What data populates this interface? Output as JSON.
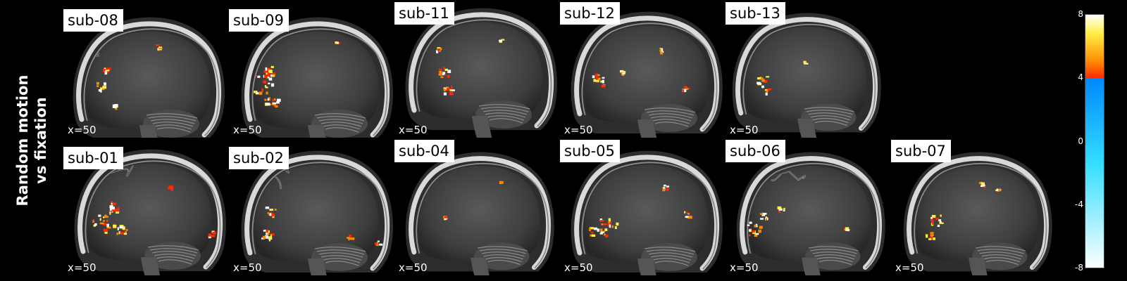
{
  "figure": {
    "row_label_lines": [
      "Random motion",
      "vs fixation"
    ],
    "coordinate_label": "x=50",
    "top_row": [
      "sub-08",
      "sub-09",
      "sub-11",
      "sub-12",
      "sub-13"
    ],
    "bottom_row": [
      "sub-01",
      "sub-02",
      "sub-04",
      "sub-05",
      "sub-06",
      "sub-07"
    ]
  },
  "colorbar": {
    "ticks": [
      "8",
      "4",
      "0",
      "-4",
      "-8"
    ],
    "threshold": 4,
    "range": [
      -8,
      8
    ],
    "colors": {
      "positive": [
        "#ff2a00",
        "#ff8800",
        "#ffee44",
        "#ffffff"
      ],
      "neutral": "#808080",
      "negative": [
        "#0088ff",
        "#33ddff",
        "#ffffff"
      ]
    }
  }
}
